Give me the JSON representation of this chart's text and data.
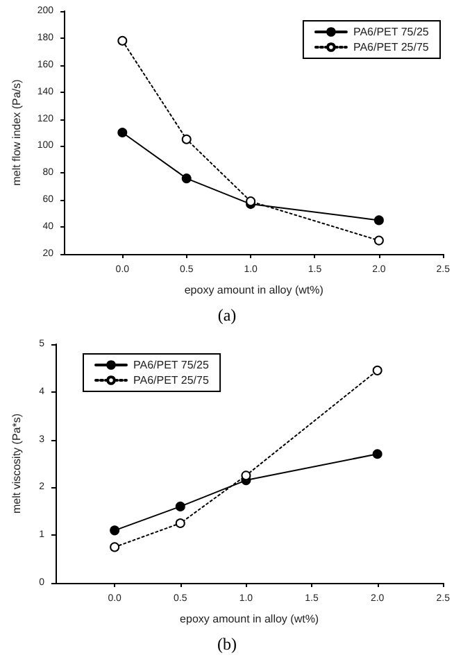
{
  "chart_data": [
    {
      "type": "line",
      "xlabel": "epoxy amount in alloy (wt%)",
      "ylabel": "melt flow index (Pa/s)",
      "annotations": [
        "(a)"
      ],
      "x": [
        0,
        0.5,
        1,
        2
      ],
      "xlim": [
        -0.45,
        2.5
      ],
      "xticks": [
        {
          "value": 0,
          "label": "0.0"
        },
        {
          "value": 0.5,
          "label": "0.5"
        },
        {
          "value": 1,
          "label": "1.0"
        },
        {
          "value": 1.5,
          "label": "1.5"
        },
        {
          "value": 2,
          "label": "2.0"
        },
        {
          "value": 2.5,
          "label": "2.5"
        }
      ],
      "ylim": [
        20,
        200
      ],
      "yticks": [
        20,
        40,
        60,
        80,
        100,
        120,
        140,
        160,
        180,
        200
      ],
      "grid": false,
      "legend": "top right",
      "marker": "circle",
      "series": [
        {
          "name": "PA6/PET 75/25",
          "color": "#000000",
          "line_style": "solid",
          "values": [
            110,
            76,
            57,
            45
          ]
        },
        {
          "name": "PA6/PET 25/75",
          "color": "#000000",
          "line_style": "dotted",
          "values": [
            178,
            105,
            59,
            30
          ]
        }
      ]
    },
    {
      "type": "line",
      "xlabel": "epoxy amount in alloy (wt%)",
      "ylabel": "melt viscosity (Pa*s)",
      "annotations": [
        "(b)"
      ],
      "x": [
        0,
        0.5,
        1,
        2
      ],
      "xlim": [
        -0.45,
        2.5
      ],
      "xticks": [
        {
          "value": 0,
          "label": "0.0"
        },
        {
          "value": 0.5,
          "label": "0.5"
        },
        {
          "value": 1,
          "label": "1.0"
        },
        {
          "value": 1.5,
          "label": "1.5"
        },
        {
          "value": 2,
          "label": "2.0"
        },
        {
          "value": 2.5,
          "label": "2.5"
        }
      ],
      "ylim": [
        0,
        5
      ],
      "yticks": [
        0,
        1,
        2,
        3,
        4,
        5
      ],
      "grid": false,
      "legend": "top left",
      "marker": "circle",
      "series": [
        {
          "name": "PA6/PET 75/25",
          "color": "#000000",
          "line_style": "solid",
          "values": [
            1.1,
            1.6,
            2.15,
            2.7
          ]
        },
        {
          "name": "PA6/PET 25/75",
          "color": "#000000",
          "line_style": "dotted",
          "values": [
            0.75,
            1.25,
            2.25,
            4.45
          ]
        }
      ]
    }
  ]
}
